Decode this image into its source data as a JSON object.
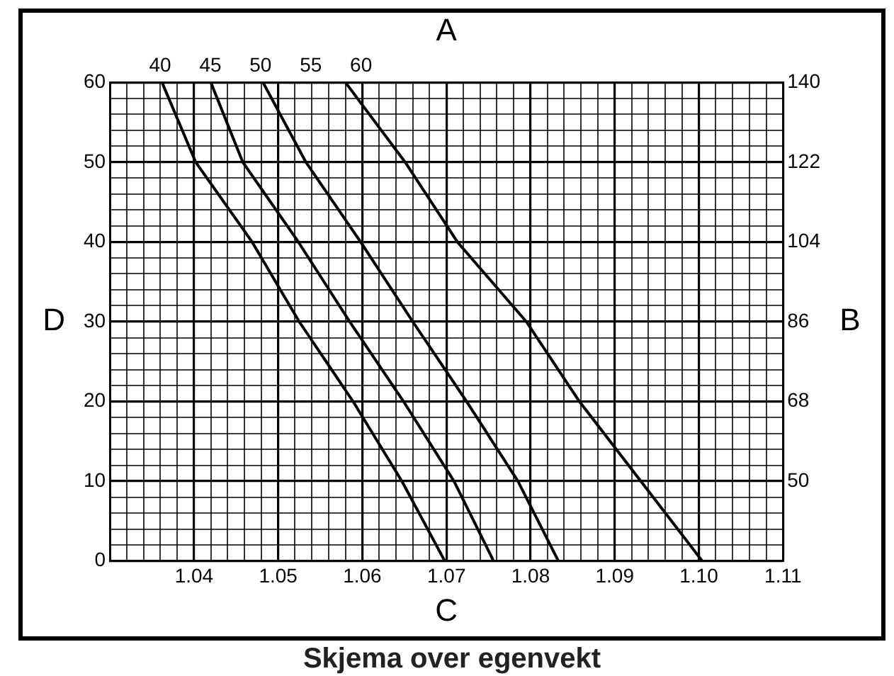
{
  "chart_data": {
    "type": "line",
    "title": "Skjema over egenvekt",
    "xlabel": "C",
    "ylabel": "D",
    "y2label": "B",
    "x2label": "A",
    "xlim": [
      1.03,
      1.11
    ],
    "xticks": [
      {
        "value": 1.03,
        "label": null
      },
      {
        "value": 1.032,
        "label": null
      },
      {
        "value": 1.034,
        "label": null
      },
      {
        "value": 1.036,
        "label": null
      },
      {
        "value": 1.038,
        "label": null
      },
      {
        "value": 1.04,
        "label": "1.04"
      },
      {
        "value": 1.042,
        "label": null
      },
      {
        "value": 1.044,
        "label": null
      },
      {
        "value": 1.046,
        "label": null
      },
      {
        "value": 1.048,
        "label": null
      },
      {
        "value": 1.05,
        "label": "1.05"
      },
      {
        "value": 1.052,
        "label": null
      },
      {
        "value": 1.054,
        "label": null
      },
      {
        "value": 1.056,
        "label": null
      },
      {
        "value": 1.058,
        "label": null
      },
      {
        "value": 1.06,
        "label": "1.06"
      },
      {
        "value": 1.062,
        "label": null
      },
      {
        "value": 1.064,
        "label": null
      },
      {
        "value": 1.066,
        "label": null
      },
      {
        "value": 1.068,
        "label": null
      },
      {
        "value": 1.07,
        "label": "1.07"
      },
      {
        "value": 1.072,
        "label": null
      },
      {
        "value": 1.074,
        "label": null
      },
      {
        "value": 1.076,
        "label": null
      },
      {
        "value": 1.078,
        "label": null
      },
      {
        "value": 1.08,
        "label": "1.08"
      },
      {
        "value": 1.082,
        "label": null
      },
      {
        "value": 1.084,
        "label": null
      },
      {
        "value": 1.086,
        "label": null
      },
      {
        "value": 1.088,
        "label": null
      },
      {
        "value": 1.09,
        "label": "1.09"
      },
      {
        "value": 1.092,
        "label": null
      },
      {
        "value": 1.094,
        "label": null
      },
      {
        "value": 1.096,
        "label": null
      },
      {
        "value": 1.098,
        "label": null
      },
      {
        "value": 1.1,
        "label": "1.10"
      },
      {
        "value": 1.102,
        "label": null
      },
      {
        "value": 1.104,
        "label": null
      },
      {
        "value": 1.106,
        "label": null
      },
      {
        "value": 1.108,
        "label": null
      },
      {
        "value": 1.11,
        "label": "1.11"
      }
    ],
    "ylim": [
      0,
      60
    ],
    "yticks": [
      0,
      {
        "value": 2,
        "label": null
      },
      {
        "value": 4,
        "label": null
      },
      {
        "value": 6,
        "label": null
      },
      {
        "value": 8,
        "label": null
      },
      10,
      {
        "value": 12,
        "label": null
      },
      {
        "value": 14,
        "label": null
      },
      {
        "value": 16,
        "label": null
      },
      {
        "value": 18,
        "label": null
      },
      20,
      {
        "value": 22,
        "label": null
      },
      {
        "value": 24,
        "label": null
      },
      {
        "value": 26,
        "label": null
      },
      {
        "value": 28,
        "label": null
      },
      30,
      {
        "value": 32,
        "label": null
      },
      {
        "value": 34,
        "label": null
      },
      {
        "value": 36,
        "label": null
      },
      {
        "value": 38,
        "label": null
      },
      40,
      {
        "value": 42,
        "label": null
      },
      {
        "value": 44,
        "label": null
      },
      {
        "value": 46,
        "label": null
      },
      {
        "value": 48,
        "label": null
      },
      50,
      {
        "value": 52,
        "label": null
      },
      {
        "value": 54,
        "label": null
      },
      {
        "value": 56,
        "label": null
      },
      {
        "value": 58,
        "label": null
      },
      60
    ],
    "y2lim": [
      32,
      140
    ],
    "y2ticks": [
      50,
      68,
      86,
      104,
      122,
      140
    ],
    "x2lim": [
      35,
      102
    ],
    "x2ticks": [
      40,
      45,
      50,
      55,
      60
    ],
    "grid": true,
    "legend": false,
    "marker": "none",
    "line_style": "solid",
    "series": [
      {
        "color": "#000000",
        "x": [
          1.0362,
          1.0402,
          1.0469,
          1.0525,
          1.0589,
          1.0647,
          1.0698
        ],
        "values": [
          60,
          50,
          40,
          30,
          20,
          10,
          0
        ]
      },
      {
        "color": "#000000",
        "x": [
          1.042,
          1.0458,
          1.0524,
          1.0585,
          1.0649,
          1.0709,
          1.0756
        ],
        "values": [
          60,
          50,
          40,
          30,
          20,
          10,
          0
        ]
      },
      {
        "color": "#000000",
        "x": [
          1.0482,
          1.0533,
          1.0598,
          1.066,
          1.0724,
          1.0785,
          1.0833
        ],
        "values": [
          60,
          50,
          40,
          30,
          20,
          10,
          0
        ]
      },
      {
        "color": "#000000",
        "x": [
          1.058,
          1.0651,
          1.0713,
          1.0795,
          1.0858,
          1.0931,
          1.1004
        ],
        "values": [
          60,
          50,
          40,
          30,
          20,
          10,
          0
        ]
      }
    ]
  }
}
